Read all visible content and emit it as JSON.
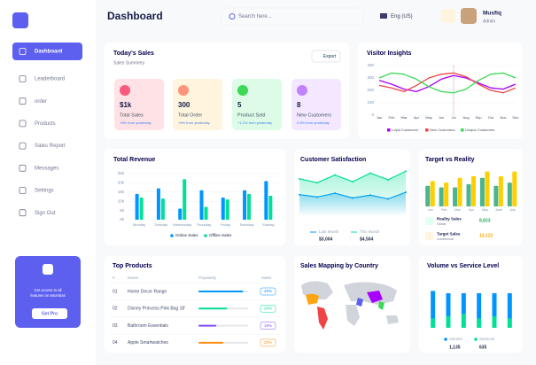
{
  "sidebar": {
    "nav": [
      "Dashboard",
      "Leaderboard",
      "order",
      "Products",
      "Sales Report",
      "Messages",
      "Settings",
      "Sign Out"
    ],
    "active": 0,
    "promo": {
      "lines": [
        "Get access to all",
        "features on tetumbas"
      ],
      "button": "Get Pro"
    }
  },
  "header": {
    "title": "Dashboard",
    "search": "Search here...",
    "language": "Eng (US)",
    "user": "Musfiq",
    "role": "Admin"
  },
  "todays_sales": {
    "title": "Today's Sales",
    "subtitle": "Sales Summery",
    "button": "Export",
    "cards": [
      {
        "value": "$1k",
        "label": "Total Sales",
        "change": "+8% from yesterday",
        "color": "#ffe2e5",
        "icon": "#fa5a7d"
      },
      {
        "value": "300",
        "label": "Total Order",
        "change": "+5% from yesterday",
        "color": "#fff4de",
        "icon": "#ff947a"
      },
      {
        "value": "5",
        "label": "Product Sold",
        "change": "+1.2% from yesterday",
        "color": "#dcfce7",
        "icon": "#3cd856"
      },
      {
        "value": "8",
        "label": "New Customers",
        "change": "0.5% from yesterday",
        "color": "#f3e8ff",
        "icon": "#bf83ff"
      }
    ]
  },
  "top_products": {
    "title": "Top Products",
    "columns": [
      "#",
      "Name",
      "Popularity",
      "Sales"
    ],
    "rows": [
      {
        "num": "01",
        "name": "Home Decor Range",
        "popularity": 45,
        "sales": "45%",
        "color": "#0095ff"
      },
      {
        "num": "02",
        "name": "Disney Princess Pink Bag 18'",
        "popularity": 29,
        "sales": "29%",
        "color": "#00e096"
      },
      {
        "num": "03",
        "name": "Bathroom Essentials",
        "popularity": 18,
        "sales": "18%",
        "color": "#884dff"
      },
      {
        "num": "04",
        "name": "Apple Smartwatches",
        "popularity": 25,
        "sales": "25%",
        "color": "#ff8f0d"
      }
    ]
  },
  "map": {
    "title": "Sales Mapping by Country"
  },
  "chart_data": [
    {
      "type": "line",
      "title": "Visitor Insights",
      "categories": [
        "Jan",
        "Feb",
        "Mar",
        "Apr",
        "May",
        "Jun",
        "Jul",
        "Aug",
        "Sep",
        "Oct",
        "Nov",
        "Dec"
      ],
      "series": [
        {
          "name": "Loyal Customers",
          "color": "#a700ff",
          "values": [
            280,
            250,
            210,
            190,
            230,
            290,
            320,
            300,
            260,
            220,
            210,
            250
          ]
        },
        {
          "name": "New Customers",
          "color": "#ef4444",
          "values": [
            240,
            220,
            190,
            240,
            300,
            330,
            340,
            310,
            250,
            200,
            180,
            220
          ]
        },
        {
          "name": "Unique Customers",
          "color": "#3cd856",
          "values": [
            300,
            340,
            330,
            290,
            230,
            190,
            180,
            210,
            280,
            330,
            340,
            300
          ]
        }
      ],
      "ylim": [
        0,
        400
      ],
      "yticks": [
        0,
        100,
        200,
        300,
        400
      ],
      "grid": true
    },
    {
      "type": "bar",
      "title": "Total Revenue",
      "categories": [
        "Monday",
        "Tuesday",
        "Wednesday",
        "Thursday",
        "Friday",
        "Saturday",
        "Sunday"
      ],
      "series": [
        {
          "name": "Online Sales",
          "color": "#0095ff",
          "values": [
            14000,
            17000,
            6000,
            16000,
            12000,
            16000,
            21000
          ]
        },
        {
          "name": "Offline Sales",
          "color": "#00e096",
          "values": [
            12000,
            11500,
            22000,
            7000,
            11000,
            14000,
            13000
          ]
        }
      ],
      "ylim": [
        0,
        25000
      ],
      "yticks": [
        {
          "value": 0,
          "label": "0k"
        },
        {
          "value": 5000,
          "label": "5k"
        },
        {
          "value": 10000,
          "label": "10k"
        },
        {
          "value": 15000,
          "label": "15k"
        },
        {
          "value": 20000,
          "label": "20k"
        },
        {
          "value": 25000,
          "label": "25k"
        }
      ],
      "grid": true
    },
    {
      "type": "area",
      "title": "Customer Satisfaction",
      "ylim": [
        0,
        100
      ],
      "series": [
        {
          "name": "Last Month",
          "color": "#0095ff",
          "total": "$3,004",
          "values": [
            45,
            40,
            48,
            38,
            44,
            36,
            50
          ]
        },
        {
          "name": "This Month",
          "color": "#07e098",
          "total": "$4,504",
          "values": [
            78,
            70,
            86,
            72,
            90,
            76,
            94
          ]
        }
      ]
    },
    {
      "type": "bar",
      "title": "Target vs Reality",
      "categories": [
        "Jan",
        "Feb",
        "Mar",
        "Apr",
        "May",
        "June",
        "July"
      ],
      "ylim": [
        0,
        12
      ],
      "series": [
        {
          "name": "Reality Sales",
          "sub": "Global",
          "total": "8,823",
          "color": "#4ab58e",
          "values": [
            6.5,
            6,
            6,
            7,
            9,
            6.5,
            7.5
          ]
        },
        {
          "name": "Target Sales",
          "sub": "Commercial",
          "total": "12,122",
          "color": "#ffcf00",
          "values": [
            8,
            7.5,
            9,
            9.5,
            11,
            9.5,
            11
          ]
        }
      ]
    },
    {
      "type": "stacked",
      "title": "Volume vs Service Level",
      "categories": [
        null,
        null,
        null,
        null,
        null,
        null
      ],
      "ylim": [
        0,
        20
      ],
      "series": [
        {
          "name": "Volume",
          "total": "1,135",
          "color": "#0095ff",
          "values": [
            12,
            10,
            9,
            11,
            10,
            11
          ]
        },
        {
          "name": "Services",
          "total": "635",
          "color": "#00e096",
          "values": [
            4,
            5,
            6,
            4,
            5,
            4
          ]
        }
      ]
    }
  ]
}
